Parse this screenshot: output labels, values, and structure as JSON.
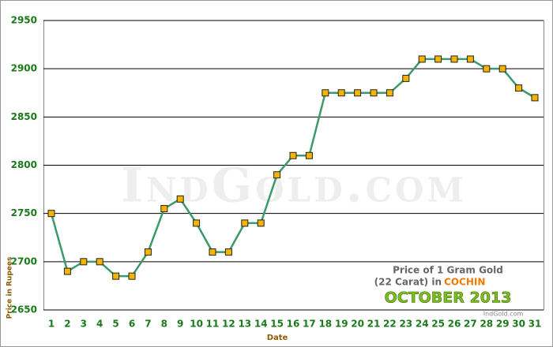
{
  "chart_data": {
    "type": "line",
    "categories": [
      "1",
      "2",
      "3",
      "4",
      "5",
      "6",
      "7",
      "8",
      "9",
      "10",
      "11",
      "12",
      "13",
      "14",
      "15",
      "16",
      "17",
      "18",
      "19",
      "20",
      "21",
      "22",
      "23",
      "24",
      "25",
      "26",
      "27",
      "28",
      "29",
      "30",
      "31"
    ],
    "values": [
      2750,
      2690,
      2700,
      2700,
      2685,
      2685,
      2710,
      2755,
      2765,
      2740,
      2710,
      2710,
      2740,
      2740,
      2790,
      2810,
      2810,
      2875,
      2875,
      2875,
      2875,
      2875,
      2890,
      2910,
      2910,
      2910,
      2910,
      2900,
      2900,
      2880,
      2870
    ],
    "color": "#3a9a6a",
    "marker_color": "#f5b400",
    "ylim": [
      2650,
      2950
    ],
    "yticks": [
      2650,
      2700,
      2750,
      2800,
      2850,
      2900,
      2950
    ],
    "grid": true,
    "xlabel": "Date",
    "ylabel": "Price in Rupees",
    "watermark": "IndGold.com",
    "annotation": {
      "line1": "Price of 1 Gram Gold",
      "line2": "(22 Carat) in",
      "city": "COCHIN",
      "month": "OCTOBER 2013",
      "site": "IndGold.com"
    }
  }
}
